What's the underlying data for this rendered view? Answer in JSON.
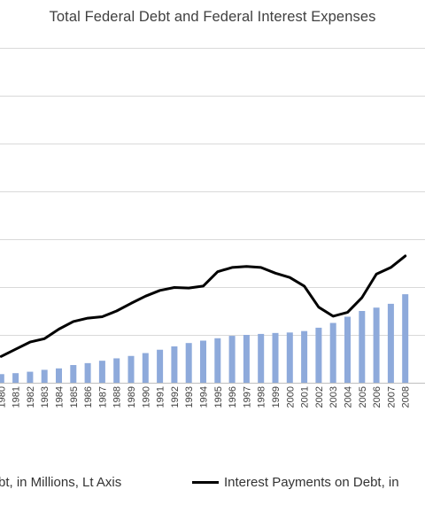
{
  "title": "Total Federal Debt and Federal Interest Expenses",
  "colors": {
    "bar": "#8eaadb",
    "line": "#000000",
    "grid": "#d9d9d9"
  },
  "legend": {
    "debt_label": "bt, in Millions, Lt Axis",
    "interest_label": "Interest Payments on Debt, in"
  },
  "chart_data": {
    "type": "bar",
    "categories": [
      "1980",
      "1981",
      "1982",
      "1983",
      "1984",
      "1985",
      "1986",
      "1987",
      "1988",
      "1989",
      "1990",
      "1991",
      "1992",
      "1993",
      "1994",
      "1995",
      "1996",
      "1997",
      "1998",
      "1999",
      "2000",
      "2001",
      "2002",
      "2003",
      "2004",
      "2005",
      "2006",
      "2007",
      "2008"
    ],
    "series": [
      {
        "kind": "bar",
        "values": [
          0.18,
          0.2,
          0.23,
          0.27,
          0.3,
          0.37,
          0.41,
          0.46,
          0.51,
          0.56,
          0.62,
          0.69,
          0.76,
          0.83,
          0.88,
          0.93,
          0.98,
          1.0,
          1.02,
          1.04,
          1.05,
          1.08,
          1.15,
          1.25,
          1.38,
          1.5,
          1.57,
          1.65,
          1.85
        ]
      },
      {
        "kind": "line",
        "values": [
          0.55,
          0.7,
          0.85,
          0.92,
          1.12,
          1.28,
          1.35,
          1.38,
          1.5,
          1.66,
          1.81,
          1.93,
          1.99,
          1.98,
          2.02,
          2.32,
          2.41,
          2.43,
          2.41,
          2.29,
          2.2,
          2.02,
          1.58,
          1.39,
          1.47,
          1.78,
          2.27,
          2.41,
          2.65
        ]
      }
    ],
    "grid": true,
    "legend_position": "bottom"
  }
}
